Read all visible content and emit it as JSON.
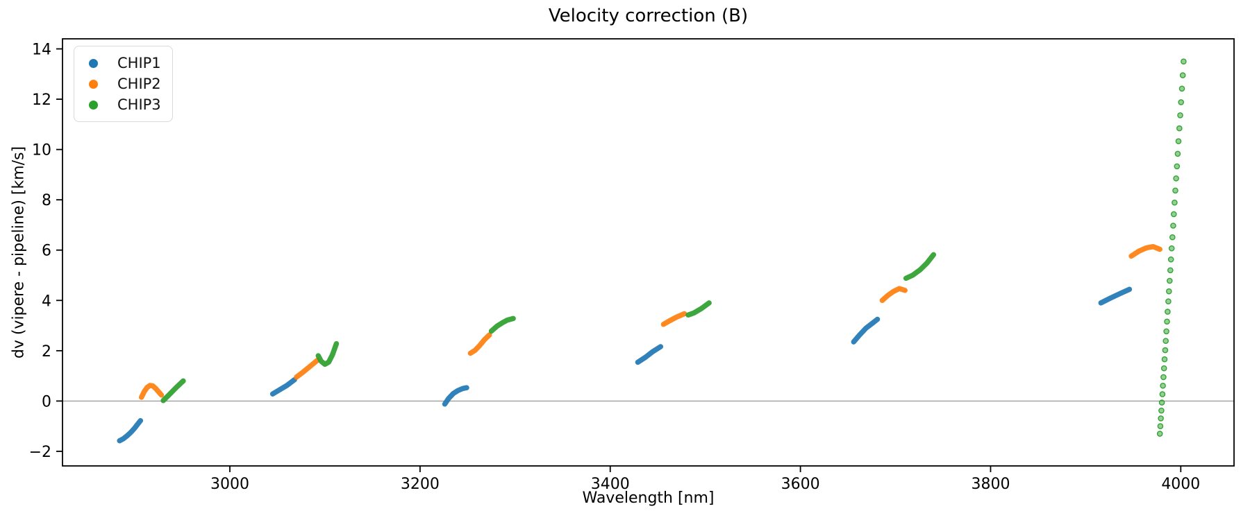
{
  "figure": {
    "title": "Velocity correction (B)",
    "xlabel": "Wavelength [nm]",
    "ylabel": "dv (vipere - pipeline) [km/s]"
  },
  "legend": {
    "items": [
      {
        "label": "CHIP1",
        "color": "#1f77b4"
      },
      {
        "label": "CHIP2",
        "color": "#ff7f0e"
      },
      {
        "label": "CHIP3",
        "color": "#2ca02c"
      }
    ]
  },
  "chart_data": {
    "type": "scatter",
    "title": "Velocity correction (B)",
    "xlabel": "Wavelength [nm]",
    "ylabel": "dv (vipere - pipeline) [km/s]",
    "xlim": [
      2824,
      4056
    ],
    "ylim": [
      -2.58,
      14.4
    ],
    "x_ticks": [
      {
        "value": 3000,
        "label": "3000"
      },
      {
        "value": 3200,
        "label": "3200"
      },
      {
        "value": 3400,
        "label": "3400"
      },
      {
        "value": 3600,
        "label": "3600"
      },
      {
        "value": 3800,
        "label": "3800"
      },
      {
        "value": 4000,
        "label": "4000"
      }
    ],
    "y_ticks": [
      {
        "value": -2,
        "label": "−2"
      },
      {
        "value": 0,
        "label": "0"
      },
      {
        "value": 2,
        "label": "2"
      },
      {
        "value": 4,
        "label": "4"
      },
      {
        "value": 6,
        "label": "6"
      },
      {
        "value": 8,
        "label": "8"
      },
      {
        "value": 10,
        "label": "10"
      },
      {
        "value": 12,
        "label": "12"
      },
      {
        "value": 14,
        "label": "14"
      }
    ],
    "grid": false,
    "legend_position": "upper left",
    "zero_line_y": 0,
    "zero_line_color": "#808080",
    "spine_color": "#000000",
    "series": [
      {
        "name": "CHIP1",
        "color": "#1f77b4",
        "marker": "line",
        "segments": [
          [
            [
              2884,
              -1.58
            ],
            [
              2888,
              -1.5
            ],
            [
              2892,
              -1.38
            ],
            [
              2896,
              -1.24
            ],
            [
              2900,
              -1.07
            ],
            [
              2903,
              -0.92
            ],
            [
              2906,
              -0.78
            ]
          ],
          [
            [
              3045,
              0.28
            ],
            [
              3052,
              0.44
            ],
            [
              3060,
              0.62
            ],
            [
              3068,
              0.85
            ]
          ],
          [
            [
              3226,
              -0.12
            ],
            [
              3230,
              0.1
            ],
            [
              3235,
              0.3
            ],
            [
              3240,
              0.42
            ],
            [
              3245,
              0.5
            ],
            [
              3249,
              0.53
            ]
          ],
          [
            [
              3429,
              1.54
            ],
            [
              3437,
              1.74
            ],
            [
              3445,
              1.97
            ],
            [
              3453,
              2.16
            ]
          ],
          [
            [
              3656,
              2.35
            ],
            [
              3662,
              2.62
            ],
            [
              3669,
              2.9
            ],
            [
              3676,
              3.1
            ],
            [
              3681,
              3.25
            ]
          ],
          [
            [
              3916,
              3.9
            ],
            [
              3926,
              4.09
            ],
            [
              3936,
              4.27
            ],
            [
              3946,
              4.44
            ]
          ]
        ]
      },
      {
        "name": "CHIP2",
        "color": "#ff7f0e",
        "marker": "line",
        "segments": [
          [
            [
              2907,
              0.15
            ],
            [
              2910,
              0.38
            ],
            [
              2913,
              0.54
            ],
            [
              2916,
              0.62
            ],
            [
              2919,
              0.6
            ],
            [
              2922,
              0.5
            ],
            [
              2925,
              0.37
            ],
            [
              2928,
              0.24
            ]
          ],
          [
            [
              3070,
              0.95
            ],
            [
              3077,
              1.15
            ],
            [
              3085,
              1.4
            ],
            [
              3092,
              1.62
            ]
          ],
          [
            [
              3253,
              1.9
            ],
            [
              3258,
              2.02
            ],
            [
              3263,
              2.22
            ],
            [
              3268,
              2.45
            ],
            [
              3273,
              2.63
            ]
          ],
          [
            [
              3456,
              3.05
            ],
            [
              3462,
              3.18
            ],
            [
              3470,
              3.34
            ],
            [
              3478,
              3.47
            ]
          ],
          [
            [
              3686,
              4.0
            ],
            [
              3692,
              4.2
            ],
            [
              3698,
              4.36
            ],
            [
              3704,
              4.47
            ],
            [
              3710,
              4.4
            ]
          ],
          [
            [
              3948,
              5.76
            ],
            [
              3956,
              5.96
            ],
            [
              3964,
              6.09
            ],
            [
              3971,
              6.14
            ],
            [
              3978,
              6.03
            ]
          ]
        ]
      },
      {
        "name": "CHIP3",
        "color": "#2ca02c",
        "marker": "line",
        "segments": [
          [
            [
              2930,
              0.02
            ],
            [
              2937,
              0.28
            ],
            [
              2944,
              0.55
            ],
            [
              2951,
              0.8
            ]
          ],
          [
            [
              3093,
              1.8
            ],
            [
              3096,
              1.58
            ],
            [
              3100,
              1.46
            ],
            [
              3104,
              1.55
            ],
            [
              3108,
              1.85
            ],
            [
              3112,
              2.28
            ]
          ],
          [
            [
              3275,
              2.78
            ],
            [
              3281,
              2.98
            ],
            [
              3287,
              3.12
            ],
            [
              3292,
              3.22
            ],
            [
              3298,
              3.28
            ]
          ],
          [
            [
              3482,
              3.42
            ],
            [
              3488,
              3.5
            ],
            [
              3496,
              3.68
            ],
            [
              3504,
              3.9
            ]
          ],
          [
            [
              3711,
              4.88
            ],
            [
              3718,
              5.0
            ],
            [
              3726,
              5.22
            ],
            [
              3733,
              5.48
            ],
            [
              3740,
              5.82
            ]
          ]
        ],
        "dotted_segments": [
          [
            [
              3978.0,
              -1.3
            ],
            [
              3978.5,
              -1.0
            ],
            [
              3979.0,
              -0.69
            ],
            [
              3979.6,
              -0.38
            ],
            [
              3980.1,
              -0.06
            ],
            [
              3980.7,
              0.27
            ],
            [
              3981.2,
              0.61
            ],
            [
              3981.8,
              0.95
            ],
            [
              3982.4,
              1.3
            ],
            [
              3983.0,
              1.66
            ],
            [
              3983.6,
              2.02
            ],
            [
              3984.2,
              2.39
            ],
            [
              3984.9,
              2.77
            ],
            [
              3985.5,
              3.16
            ],
            [
              3986.2,
              3.55
            ],
            [
              3986.9,
              3.96
            ],
            [
              3987.6,
              4.36
            ],
            [
              3988.3,
              4.78
            ],
            [
              3989.0,
              5.2
            ],
            [
              3989.7,
              5.63
            ],
            [
              3990.4,
              6.07
            ],
            [
              3991.2,
              6.51
            ],
            [
              3992.0,
              6.97
            ],
            [
              3992.7,
              7.43
            ],
            [
              3993.5,
              7.89
            ],
            [
              3994.3,
              8.37
            ],
            [
              3995.1,
              8.85
            ],
            [
              3996.0,
              9.33
            ],
            [
              3996.8,
              9.83
            ],
            [
              3997.6,
              10.33
            ],
            [
              3998.5,
              10.84
            ],
            [
              3999.4,
              11.36
            ],
            [
              4000.3,
              11.88
            ],
            [
              4001.2,
              12.42
            ],
            [
              4002.1,
              12.95
            ],
            [
              4003.0,
              13.5
            ]
          ]
        ]
      }
    ]
  }
}
